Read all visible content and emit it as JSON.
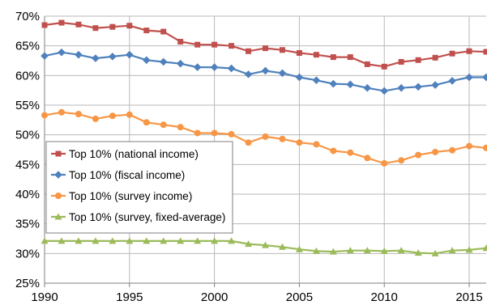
{
  "chart_data": {
    "type": "line",
    "title": "",
    "xlabel": "",
    "ylabel": "",
    "xlim": [
      1990,
      2016
    ],
    "ylim": [
      0.25,
      0.7
    ],
    "y_ticks": [
      "25%",
      "30%",
      "35%",
      "40%",
      "45%",
      "50%",
      "55%",
      "60%",
      "65%",
      "70%"
    ],
    "x_ticks": [
      "1990",
      "1995",
      "2000",
      "2005",
      "2010",
      "2015"
    ],
    "grid": "major x and y",
    "legend_position": "center-left",
    "x": [
      1990,
      1991,
      1992,
      1993,
      1994,
      1995,
      1996,
      1997,
      1998,
      1999,
      2000,
      2001,
      2002,
      2003,
      2004,
      2005,
      2006,
      2007,
      2008,
      2009,
      2010,
      2011,
      2012,
      2013,
      2014,
      2015,
      2016
    ],
    "series": [
      {
        "name": "Top 10% (national income)",
        "color": "#c0504d",
        "marker": "square",
        "values": [
          0.685,
          0.689,
          0.686,
          0.68,
          0.682,
          0.684,
          0.676,
          0.674,
          0.657,
          0.652,
          0.652,
          0.65,
          0.641,
          0.646,
          0.643,
          0.638,
          0.635,
          0.631,
          0.631,
          0.619,
          0.615,
          0.623,
          0.626,
          0.63,
          0.637,
          0.641,
          0.64
        ]
      },
      {
        "name": "Top 10% (fiscal income)",
        "color": "#4f81bd",
        "marker": "diamond",
        "values": [
          0.633,
          0.639,
          0.635,
          0.629,
          0.632,
          0.635,
          0.626,
          0.623,
          0.62,
          0.614,
          0.614,
          0.612,
          0.602,
          0.608,
          0.604,
          0.597,
          0.592,
          0.586,
          0.585,
          0.579,
          0.574,
          0.579,
          0.581,
          0.584,
          0.591,
          0.597,
          0.597
        ]
      },
      {
        "name": "Top 10% (survey income)",
        "color": "#f79646",
        "marker": "circle",
        "values": [
          0.533,
          0.538,
          0.535,
          0.527,
          0.532,
          0.534,
          0.521,
          0.517,
          0.513,
          0.503,
          0.503,
          0.501,
          0.487,
          0.497,
          0.493,
          0.487,
          0.484,
          0.473,
          0.47,
          0.461,
          0.452,
          0.457,
          0.466,
          0.471,
          0.474,
          0.481,
          0.478
        ]
      },
      {
        "name": "Top 10% (survey, fixed-average)",
        "color": "#9bbb59",
        "marker": "triangle",
        "values": [
          0.321,
          0.321,
          0.321,
          0.321,
          0.321,
          0.321,
          0.321,
          0.321,
          0.321,
          0.321,
          0.321,
          0.321,
          0.316,
          0.314,
          0.311,
          0.307,
          0.304,
          0.303,
          0.305,
          0.305,
          0.304,
          0.305,
          0.301,
          0.3,
          0.305,
          0.306,
          0.309
        ]
      }
    ]
  }
}
